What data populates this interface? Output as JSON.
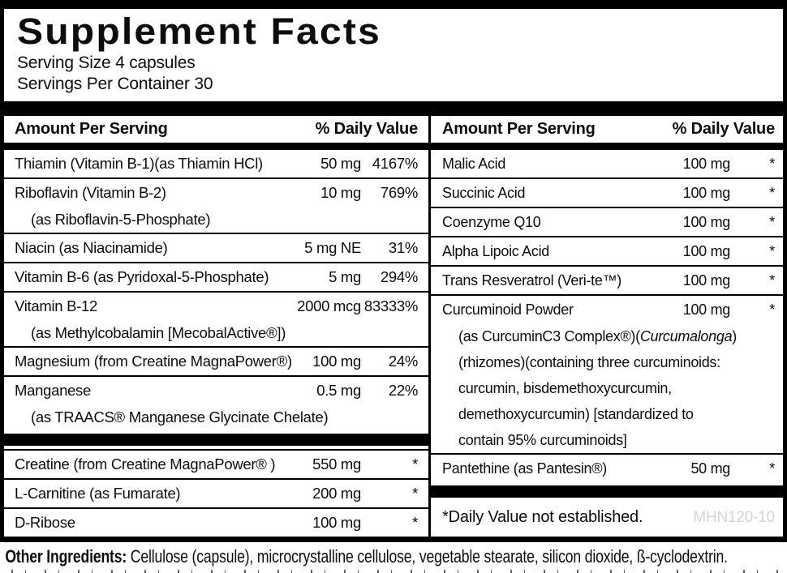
{
  "title": "Supplement Facts",
  "serving_size": "Serving Size 4 capsules",
  "servings_per_container": "Servings Per Container 30",
  "colors": {
    "text": "#0d0d0d",
    "bars": "#000000",
    "product_code_gray": "#d4d4d4"
  },
  "columns": {
    "left": {
      "header": {
        "amount": "Amount Per Serving",
        "dv": "% Daily Value"
      },
      "rows": [
        {
          "lines": [
            [
              {
                "text": "Thiamin (Vitamin B-1)(as Thiamin HCl)"
              }
            ]
          ],
          "amount": "50 mg",
          "dv": "4167%"
        },
        {
          "lines": [
            [
              {
                "text": "Riboflavin (Vitamin B-2)"
              }
            ],
            [
              {
                "text": "(as Riboflavin-5-Phosphate)"
              }
            ]
          ],
          "amount": "10 mg",
          "dv": "769%"
        },
        {
          "lines": [
            [
              {
                "text": "Niacin (as Niacinamide)"
              }
            ]
          ],
          "amount": "5 mg NE",
          "dv": "31%"
        },
        {
          "lines": [
            [
              {
                "text": "Vitamin B-6 (as Pyridoxal-5-Phosphate)"
              }
            ]
          ],
          "amount": "5 mg",
          "dv": "294%"
        },
        {
          "lines": [
            [
              {
                "text": "Vitamin B-12"
              }
            ],
            [
              {
                "text": "(as Methylcobalamin [MecobalActive®])"
              }
            ]
          ],
          "amount": "2000 mcg",
          "dv": "83333%"
        },
        {
          "lines": [
            [
              {
                "text": "Magnesium (from Creatine MagnaPower®)"
              }
            ]
          ],
          "amount": "100 mg",
          "dv": "24%"
        },
        {
          "lines": [
            [
              {
                "text": "Manganese"
              }
            ],
            [
              {
                "text": "(as TRAACS® Manganese Glycinate Chelate)"
              }
            ]
          ],
          "amount": "0.5 mg",
          "dv": "22%"
        },
        {
          "type": "separator"
        },
        {
          "lines": [
            [
              {
                "text": "Creatine (from Creatine MagnaPower® )"
              }
            ]
          ],
          "amount": "550 mg",
          "dv": "*"
        },
        {
          "lines": [
            [
              {
                "text": "L-Carnitine (as Fumarate)"
              }
            ]
          ],
          "amount": "200 mg",
          "dv": "*"
        },
        {
          "lines": [
            [
              {
                "text": "D-Ribose"
              }
            ]
          ],
          "amount": "100 mg",
          "dv": "*"
        }
      ]
    },
    "right": {
      "header": {
        "amount": "Amount Per Serving",
        "dv": "% Daily Value"
      },
      "rows": [
        {
          "lines": [
            [
              {
                "text": "Malic Acid"
              }
            ]
          ],
          "amount": "100 mg",
          "dv": "*"
        },
        {
          "lines": [
            [
              {
                "text": "Succinic Acid"
              }
            ]
          ],
          "amount": "100 mg",
          "dv": "*"
        },
        {
          "lines": [
            [
              {
                "text": "Coenzyme Q10"
              }
            ]
          ],
          "amount": "100 mg",
          "dv": "*"
        },
        {
          "lines": [
            [
              {
                "text": "Alpha Lipoic Acid"
              }
            ]
          ],
          "amount": "100 mg",
          "dv": "*"
        },
        {
          "lines": [
            [
              {
                "text": "Trans Resveratrol (Veri-te™)"
              }
            ]
          ],
          "amount": "100 mg",
          "dv": "*"
        },
        {
          "lines": [
            [
              {
                "text": "Curcuminoid Powder"
              }
            ],
            [
              {
                "text": "(as CurcuminC3 Complex®)("
              },
              {
                "text": "Curcumalonga",
                "italic": true
              },
              {
                "text": ")"
              }
            ],
            [
              {
                "text": "(rhizomes)(containing three curcuminoids:"
              }
            ],
            [
              {
                "text": "curcumin, bisdemethoxycurcumin,"
              }
            ],
            [
              {
                "text": "demethoxycurcumin) [standardized to"
              }
            ],
            [
              {
                "text": "contain 95% curcuminoids]"
              }
            ]
          ],
          "amount": "100 mg",
          "dv": "*"
        },
        {
          "lines": [
            [
              {
                "text": "Pantethine (as Pantesin®)"
              }
            ]
          ],
          "amount": "50 mg",
          "dv": "*"
        },
        {
          "type": "separator"
        }
      ]
    }
  },
  "footnote": {
    "text": "*Daily Value not established.",
    "code": "MHN120-10"
  },
  "other_ingredients": {
    "label": "Other Ingredients:",
    "text": " Cellulose (capsule), microcrystalline cellulose, vegetable stearate, silicon dioxide, ß-cyclodextrin."
  }
}
